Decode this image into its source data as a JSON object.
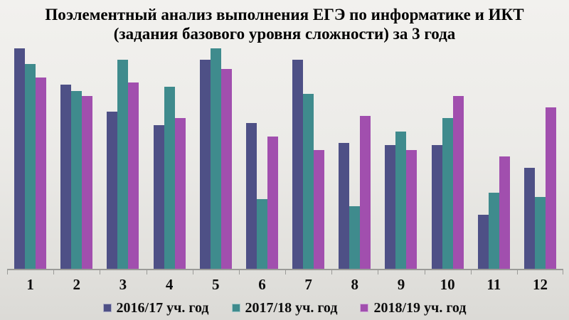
{
  "title": {
    "line1": "Поэлементный анализ выполнения ЕГЭ по информатике и ИКТ",
    "line2": "(задания базового уровня сложности) за 3 года"
  },
  "legend": {
    "items": [
      {
        "label": "2016/17 уч. год",
        "color": "#4E5086"
      },
      {
        "label": "2017/18 уч. год",
        "color": "#3F8B8D"
      },
      {
        "label": "2018/19 уч. год",
        "color": "#A14FAE"
      }
    ]
  },
  "colors": {
    "series_2016_17": "#4E5086",
    "series_2017_18": "#3F8B8D",
    "series_2018_19": "#A14FAE",
    "axis": "#9B9B98",
    "title_text": "#000000",
    "background_top": "#F2F1EE",
    "background_bottom": "#DBDAD6"
  },
  "chart_data": {
    "type": "bar",
    "title": "Поэлементный анализ выполнения ЕГЭ по информатике и ИКТ (задания базового уровня сложности) за 3 года",
    "categories": [
      "1",
      "2",
      "3",
      "4",
      "5",
      "6",
      "7",
      "8",
      "9",
      "10",
      "11",
      "12"
    ],
    "series": [
      {
        "name": "2016/17 уч. год",
        "color": "#4E5086",
        "values": [
          98,
          82,
          70,
          64,
          93,
          65,
          93,
          56,
          55,
          55,
          24,
          45
        ]
      },
      {
        "name": "2017/18 уч. год",
        "color": "#3F8B8D",
        "values": [
          91,
          79,
          93,
          81,
          98,
          31,
          78,
          28,
          61,
          67,
          34,
          32
        ]
      },
      {
        "name": "2018/19 уч. год",
        "color": "#A14FAE",
        "values": [
          85,
          77,
          83,
          67,
          89,
          59,
          53,
          68,
          53,
          77,
          50,
          72
        ]
      }
    ],
    "xlabel": "",
    "ylabel": "",
    "ylim": [
      0,
      100
    ],
    "y_axis_visible": false,
    "gridlines": false,
    "legend_position": "bottom"
  }
}
